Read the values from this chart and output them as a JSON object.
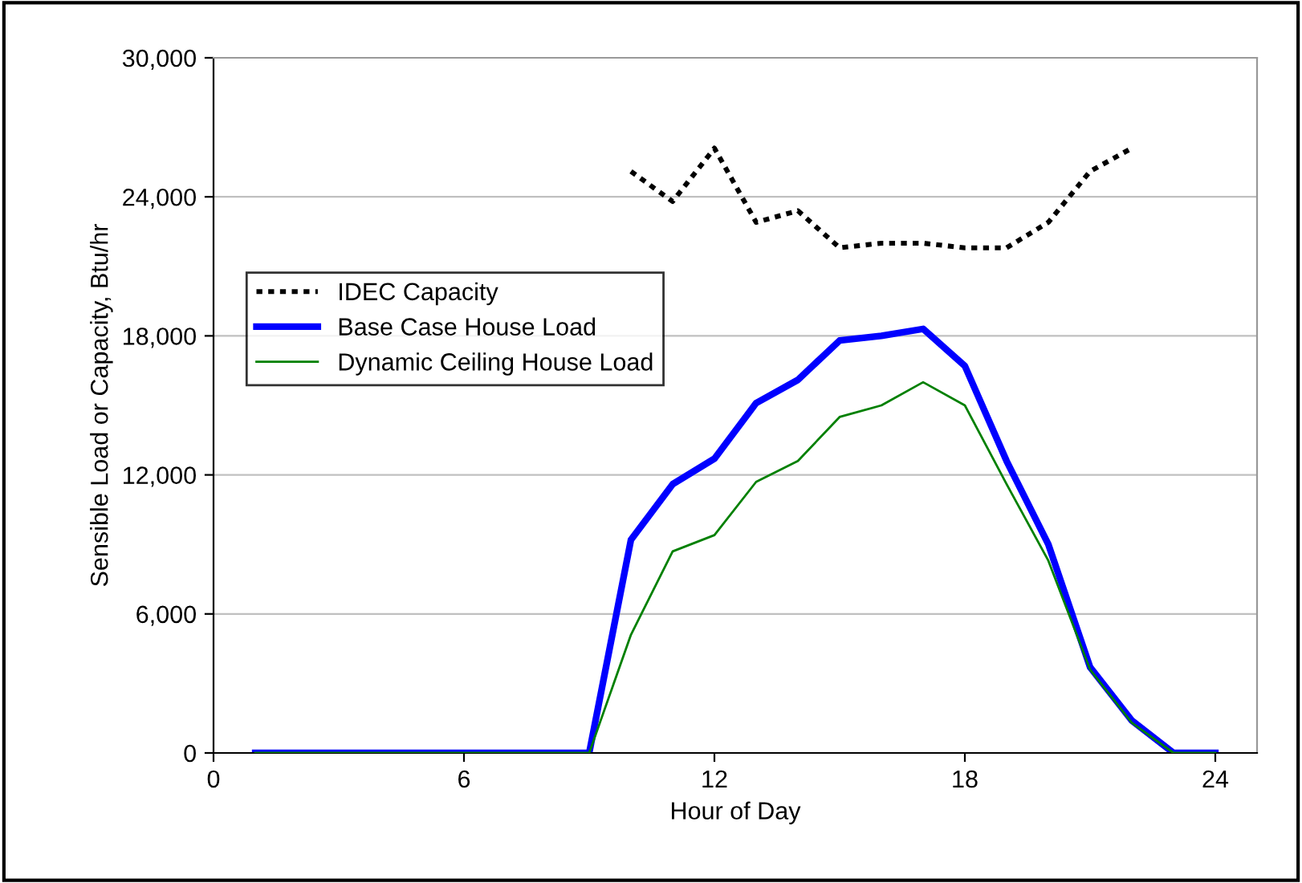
{
  "chart_data": {
    "type": "line",
    "xlabel": "Hour of Day",
    "ylabel": "Sensible Load or Capacity, Btu/hr",
    "xlim": [
      0,
      25
    ],
    "xticks": [
      0,
      6,
      12,
      18,
      24
    ],
    "ylim": [
      0,
      30000
    ],
    "yticks": [
      {
        "value": 0,
        "label": "0"
      },
      {
        "value": 6000,
        "label": "6,000"
      },
      {
        "value": 12000,
        "label": "12,000"
      },
      {
        "value": 18000,
        "label": "18,000"
      },
      {
        "value": 24000,
        "label": "24,000"
      },
      {
        "value": 30000,
        "label": "30,000"
      }
    ],
    "grid": "y",
    "legend": "center left",
    "marker": "none",
    "series": [
      {
        "name": "IDEC Capacity",
        "color": "#000000",
        "line_style": "dotted",
        "x": [
          10,
          11,
          12,
          13,
          14,
          15,
          16,
          17,
          18,
          19,
          20,
          21,
          22
        ],
        "values": [
          25100,
          23800,
          26100,
          22900,
          23400,
          21800,
          22000,
          22000,
          21800,
          21800,
          22900,
          25100,
          26100
        ]
      },
      {
        "name": "Base Case House Load",
        "color": "#0000ff",
        "line_style": "solid",
        "x": [
          1,
          2,
          3,
          4,
          5,
          6,
          7,
          8,
          9,
          10,
          11,
          12,
          13,
          14,
          15,
          16,
          17,
          18,
          19,
          20,
          21,
          22,
          23,
          24
        ],
        "values": [
          0,
          0,
          0,
          0,
          0,
          0,
          0,
          0,
          0,
          9200,
          11600,
          12700,
          15100,
          16100,
          17800,
          18000,
          18300,
          16700,
          12600,
          9000,
          3700,
          1400,
          0,
          0
        ]
      },
      {
        "name": "Dynamic Ceiling House Load",
        "color": "#008000",
        "line_style": "solid",
        "x": [
          1,
          2,
          3,
          4,
          5,
          6,
          7,
          8,
          9,
          10,
          11,
          12,
          13,
          14,
          15,
          16,
          17,
          18,
          19,
          20,
          21,
          22,
          23,
          24
        ],
        "values": [
          0,
          0,
          0,
          0,
          0,
          0,
          0,
          0,
          0,
          5100,
          8700,
          9400,
          11700,
          12600,
          14500,
          15000,
          16000,
          15000,
          11600,
          8300,
          3600,
          1300,
          0,
          0
        ]
      }
    ]
  }
}
